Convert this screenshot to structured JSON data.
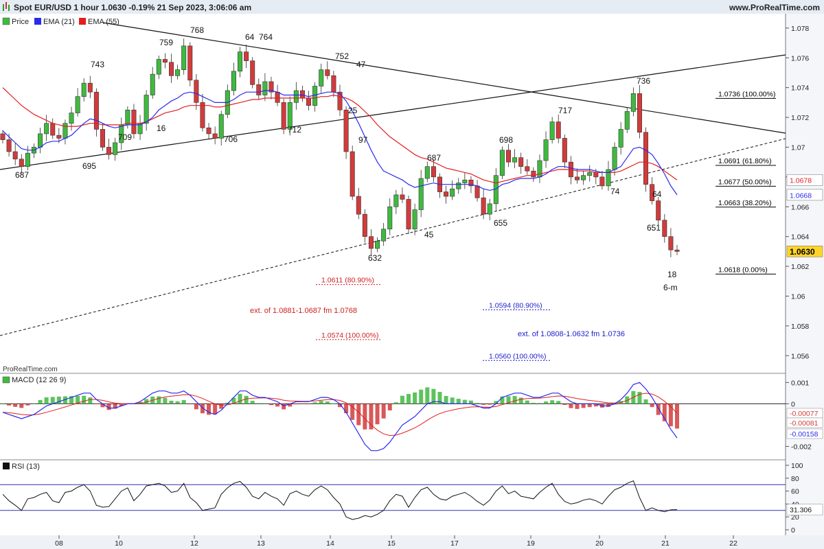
{
  "header": {
    "title": "Spot EUR/USD 1 hour 1.0630 -0.19% 21 Sep 2023, 3:06:06 am",
    "site": "www.ProRealTime.com",
    "watermark": "ProRealTime.com"
  },
  "legend": {
    "price": "Price",
    "ema21": "EMA (21)",
    "ema55": "EMA (55)"
  },
  "colors": {
    "up": "#3fb93f",
    "down": "#d23b3b",
    "ema21": "#2a2aee",
    "ema55": "#e31d1d",
    "fib_black": "#000000",
    "fib_red": "#d01f1f",
    "fib_blue": "#1d1dcc",
    "last_price_bg": "#ffd42a",
    "rsi_lines": "#3030a8"
  },
  "chart_data": {
    "type": "line",
    "title": "Spot EUR/USD 1 hour",
    "price_axis": {
      "range": [
        1.055,
        1.0785
      ],
      "ticks": [
        "1.078",
        "1.076",
        "1.074",
        "1.072",
        "1.07",
        "1.068",
        "1.066",
        "1.064",
        "1.062",
        "1.06",
        "1.058",
        "1.056"
      ]
    },
    "x_ticks": [
      "08",
      "10",
      "12",
      "13",
      "14",
      "15",
      "17",
      "19",
      "20",
      "21",
      "22"
    ],
    "price_series": [
      1.0705,
      1.0697,
      1.0692,
      1.0687,
      1.0696,
      1.07,
      1.0709,
      1.0716,
      1.0708,
      1.0706,
      1.0716,
      1.0723,
      1.0734,
      1.0743,
      1.0737,
      1.0712,
      1.07,
      1.0695,
      1.0703,
      1.0715,
      1.0725,
      1.0709,
      1.0716,
      1.0735,
      1.0749,
      1.0759,
      1.0757,
      1.0748,
      1.0752,
      1.0768,
      1.0745,
      1.073,
      1.0713,
      1.0709,
      1.0706,
      1.0722,
      1.0738,
      1.0751,
      1.0764,
      1.0758,
      1.0742,
      1.0735,
      1.0744,
      1.0737,
      1.073,
      1.0712,
      1.073,
      1.0738,
      1.0733,
      1.0728,
      1.0741,
      1.0752,
      1.0748,
      1.0737,
      1.0725,
      1.0697,
      1.0667,
      1.0655,
      1.064,
      1.0632,
      1.0637,
      1.0645,
      1.066,
      1.0668,
      1.0665,
      1.0645,
      1.0658,
      1.0679,
      1.0687,
      1.068,
      1.067,
      1.0667,
      1.0672,
      1.0676,
      1.0678,
      1.0674,
      1.0666,
      1.0655,
      1.0662,
      1.0681,
      1.0698,
      1.069,
      1.0693,
      1.0687,
      1.0684,
      1.068,
      1.0691,
      1.0705,
      1.0717,
      1.0706,
      1.069,
      1.068,
      1.0678,
      1.0681,
      1.0683,
      1.068,
      1.0674,
      1.0685,
      1.07,
      1.0712,
      1.0724,
      1.0736,
      1.071,
      1.0675,
      1.0664,
      1.0651,
      1.064,
      1.0631,
      1.063
    ],
    "ema21": [
      1.0711,
      1.0707,
      1.0703,
      1.0699,
      1.0698,
      1.0698,
      1.07,
      1.0703,
      1.0704,
      1.0704,
      1.0706,
      1.0708,
      1.0712,
      1.0716,
      1.0719,
      1.0718,
      1.0716,
      1.0714,
      1.0713,
      1.0714,
      1.0715,
      1.0715,
      1.0715,
      1.0717,
      1.072,
      1.0725,
      1.0728,
      1.0731,
      1.0733,
      1.0736,
      1.0737,
      1.0736,
      1.0734,
      1.0732,
      1.073,
      1.073,
      1.073,
      1.0732,
      1.0735,
      1.0737,
      1.0737,
      1.0737,
      1.0738,
      1.0738,
      1.0737,
      1.0735,
      1.0735,
      1.0735,
      1.0735,
      1.0734,
      1.0735,
      1.0736,
      1.0737,
      1.0737,
      1.0736,
      1.0731,
      1.0724,
      1.0716,
      1.0707,
      1.0698,
      1.069,
      1.0684,
      1.0682,
      1.068,
      1.0678,
      1.0675,
      1.0673,
      1.0674,
      1.0675,
      1.0676,
      1.0675,
      1.0675,
      1.0675,
      1.0675,
      1.0675,
      1.0675,
      1.0674,
      1.0672,
      1.0671,
      1.0672,
      1.0675,
      1.0676,
      1.0678,
      1.0679,
      1.0679,
      1.0679,
      1.068,
      1.0682,
      1.0685,
      1.0687,
      1.0687,
      1.0686,
      1.0685,
      1.0685,
      1.0685,
      1.0684,
      1.0683,
      1.0683,
      1.0685,
      1.0687,
      1.0693,
      1.0699,
      1.07,
      1.0698,
      1.0695,
      1.0689,
      1.0682,
      1.0674,
      1.0668
    ],
    "ema55": [
      1.074,
      1.0736,
      1.0732,
      1.0728,
      1.0725,
      1.0722,
      1.072,
      1.0718,
      1.0716,
      1.0715,
      1.0714,
      1.0714,
      1.0714,
      1.0715,
      1.0716,
      1.0716,
      1.0715,
      1.0715,
      1.0715,
      1.0715,
      1.0716,
      1.0716,
      1.0716,
      1.0717,
      1.0719,
      1.0721,
      1.0723,
      1.0724,
      1.0725,
      1.0727,
      1.0728,
      1.0728,
      1.0728,
      1.0728,
      1.0727,
      1.0727,
      1.0728,
      1.0729,
      1.073,
      1.0731,
      1.0732,
      1.0732,
      1.0733,
      1.0733,
      1.0733,
      1.0733,
      1.0733,
      1.0733,
      1.0733,
      1.0733,
      1.0733,
      1.0734,
      1.0734,
      1.0735,
      1.0734,
      1.0733,
      1.0731,
      1.0728,
      1.0724,
      1.072,
      1.0715,
      1.0711,
      1.0707,
      1.0704,
      1.0701,
      1.0698,
      1.0695,
      1.0693,
      1.0692,
      1.069,
      1.0688,
      1.0686,
      1.0685,
      1.0684,
      1.0683,
      1.0682,
      1.068,
      1.0678,
      1.0677,
      1.0676,
      1.0677,
      1.0678,
      1.0679,
      1.068,
      1.0681,
      1.0681,
      1.0682,
      1.0683,
      1.0684,
      1.0685,
      1.0685,
      1.0685,
      1.0684,
      1.0684,
      1.0684,
      1.0683,
      1.0683,
      1.0683,
      1.0683,
      1.0684,
      1.0686,
      1.0688,
      1.069,
      1.069,
      1.0689,
      1.0687,
      1.0684,
      1.0681,
      1.0678
    ],
    "price_axis_labels": {
      "last": "1.0630",
      "ema55": "1.0678",
      "ema21": "1.0668"
    },
    "fib_levels": [
      {
        "label": "1.0736 (100.00%)",
        "value": 1.0736
      },
      {
        "label": "1.0691 (61.80%)",
        "value": 1.0691
      },
      {
        "label": "1.0677 (50.00%)",
        "value": 1.0677
      },
      {
        "label": "1.0663 (38.20%)",
        "value": 1.0663
      },
      {
        "label": "1.0618 (0.00%)",
        "value": 1.0618
      }
    ],
    "ext_red": {
      "text": "ext. of 1.0881-1.0687 fm 1.0768",
      "levels": [
        {
          "label": "1.0611 (80.90%)",
          "value": 1.0611
        },
        {
          "label": "1.0574 (100.00%)",
          "value": 1.0574
        }
      ]
    },
    "ext_blue": {
      "text": "ext. of 1.0808-1.0632 fm 1.0736",
      "levels": [
        {
          "label": "1.0594 (80.90%)",
          "value": 1.0594
        },
        {
          "label": "1.0560 (100.00%)",
          "value": 1.056
        }
      ]
    },
    "wave_labels": [
      "687",
      "695",
      "743",
      "709",
      "16",
      "759",
      "768",
      "706",
      "64",
      "764",
      "712",
      "752",
      "47",
      "25",
      "97",
      "632",
      "45",
      "687",
      "655",
      "698",
      "717",
      "74",
      "736",
      "64",
      "651",
      "18",
      "6-m"
    ],
    "macd": {
      "name": "MACD (12 26 9)",
      "range": [
        -0.0025,
        0.0013
      ],
      "ticks": [
        "0.001",
        "0",
        "-0.002"
      ],
      "labels": {
        "hist": "-0.00077",
        "signal": "-0.00081",
        "macd": "-0.00158"
      },
      "macd_line": [
        -0.0004,
        -0.0005,
        -0.0006,
        -0.0007,
        -0.0006,
        -0.0005,
        -0.0003,
        -0.0001,
        0.0,
        0.0001,
        0.0002,
        0.0003,
        0.0004,
        0.0005,
        0.0005,
        0.0002,
        0.0,
        -0.0002,
        -0.0002,
        -0.0001,
        0.0,
        0.0,
        0.0001,
        0.0003,
        0.0005,
        0.0006,
        0.0006,
        0.0005,
        0.0005,
        0.0006,
        0.0004,
        0.0001,
        -0.0002,
        -0.0004,
        -0.0005,
        -0.0003,
        0.0,
        0.0003,
        0.0006,
        0.0006,
        0.0004,
        0.0003,
        0.0003,
        0.0002,
        0.0001,
        -0.0001,
        0.0,
        0.0001,
        0.0001,
        0.0001,
        0.0002,
        0.0003,
        0.0003,
        0.0002,
        0.0,
        -0.0004,
        -0.0009,
        -0.0014,
        -0.0019,
        -0.0022,
        -0.0022,
        -0.0021,
        -0.0018,
        -0.0014,
        -0.001,
        -0.0008,
        -0.0006,
        -0.0003,
        0.0,
        0.0001,
        0.0001,
        0.0,
        0.0,
        0.0,
        0.0,
        0.0,
        -0.0001,
        -0.0002,
        -0.0002,
        0.0,
        0.0003,
        0.0004,
        0.0005,
        0.0005,
        0.0004,
        0.0003,
        0.0003,
        0.0004,
        0.0005,
        0.0005,
        0.0003,
        0.0001,
        0.0,
        0.0,
        0.0,
        0.0,
        -0.0001,
        -0.0001,
        0.0,
        0.0002,
        0.0005,
        0.0009,
        0.001,
        0.0007,
        0.0003,
        -0.0002,
        -0.0007,
        -0.0012,
        -0.0016
      ]
    },
    "rsi": {
      "name": "RSI (13)",
      "range": [
        0,
        100
      ],
      "ticks": [
        "100",
        "80",
        "60",
        "40",
        "20",
        "0"
      ],
      "overbought": 70,
      "oversold": 30,
      "last_label": "31.306",
      "values": [
        55,
        45,
        38,
        30,
        48,
        50,
        55,
        58,
        45,
        42,
        58,
        60,
        66,
        70,
        60,
        38,
        35,
        36,
        48,
        60,
        65,
        45,
        55,
        68,
        70,
        72,
        68,
        58,
        60,
        72,
        50,
        42,
        30,
        32,
        34,
        55,
        65,
        72,
        75,
        66,
        52,
        48,
        58,
        52,
        48,
        38,
        56,
        60,
        55,
        52,
        62,
        68,
        62,
        50,
        40,
        20,
        16,
        18,
        22,
        20,
        24,
        30,
        45,
        55,
        52,
        35,
        50,
        62,
        66,
        55,
        48,
        46,
        52,
        55,
        58,
        52,
        44,
        38,
        46,
        60,
        68,
        56,
        60,
        52,
        50,
        48,
        58,
        66,
        72,
        55,
        44,
        40,
        42,
        46,
        48,
        45,
        40,
        52,
        62,
        66,
        72,
        76,
        50,
        30,
        34,
        30,
        28,
        31,
        31.3
      ]
    }
  }
}
